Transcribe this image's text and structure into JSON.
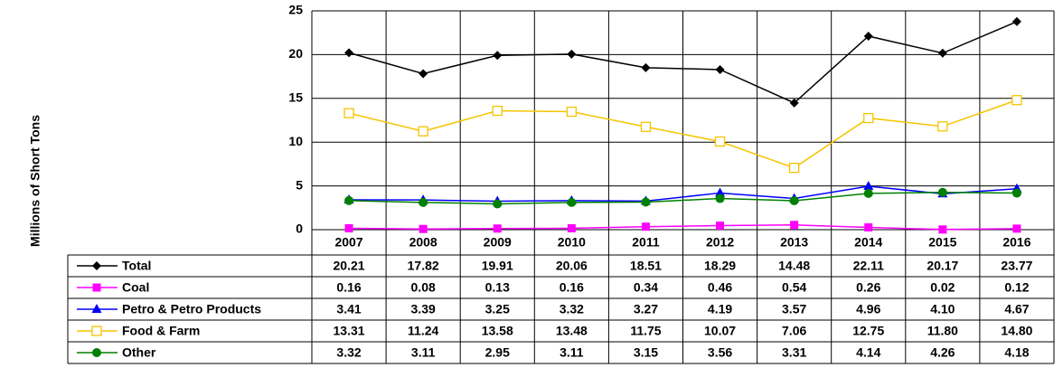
{
  "chart_data": {
    "type": "line",
    "y_label": "Millions of Short Tons",
    "categories": [
      "2007",
      "2008",
      "2009",
      "2010",
      "2011",
      "2012",
      "2013",
      "2014",
      "2015",
      "2016"
    ],
    "ylim": [
      0,
      25
    ],
    "yticks": [
      0,
      5,
      10,
      15,
      20,
      25
    ],
    "grid": true,
    "series": [
      {
        "name": "Total",
        "color": "#000000",
        "marker": "diamond",
        "values": [
          20.21,
          17.82,
          19.91,
          20.06,
          18.51,
          18.29,
          14.48,
          22.11,
          20.17,
          23.77
        ],
        "value_labels": [
          "20.21",
          "17.82",
          "19.91",
          "20.06",
          "18.51",
          "18.29",
          "14.48",
          "22.11",
          "20.17",
          "23.77"
        ]
      },
      {
        "name": "Coal",
        "color": "#ff00ff",
        "marker": "square",
        "values": [
          0.16,
          0.08,
          0.13,
          0.16,
          0.34,
          0.46,
          0.54,
          0.26,
          0.02,
          0.12
        ],
        "value_labels": [
          "0.16",
          "0.08",
          "0.13",
          "0.16",
          "0.34",
          "0.46",
          "0.54",
          "0.26",
          "0.02",
          "0.12"
        ]
      },
      {
        "name": "Petro & Petro Products",
        "color": "#0000ff",
        "marker": "triangle",
        "values": [
          3.41,
          3.39,
          3.25,
          3.32,
          3.27,
          4.19,
          3.57,
          4.96,
          4.1,
          4.67
        ],
        "value_labels": [
          "3.41",
          "3.39",
          "3.25",
          "3.32",
          "3.27",
          "4.19",
          "3.57",
          "4.96",
          "4.10",
          "4.67"
        ]
      },
      {
        "name": "Food & Farm",
        "color": "#f5c400",
        "marker": "open-square",
        "values": [
          13.31,
          11.24,
          13.58,
          13.48,
          11.75,
          10.07,
          7.06,
          12.75,
          11.8,
          14.8
        ],
        "value_labels": [
          "13.31",
          "11.24",
          "13.58",
          "13.48",
          "11.75",
          "10.07",
          "7.06",
          "12.75",
          "11.80",
          "14.80"
        ]
      },
      {
        "name": "Other",
        "color": "#008000",
        "marker": "circle",
        "values": [
          3.32,
          3.11,
          2.95,
          3.11,
          3.15,
          3.56,
          3.31,
          4.14,
          4.26,
          4.18
        ],
        "value_labels": [
          "3.32",
          "3.11",
          "2.95",
          "3.11",
          "3.15",
          "3.56",
          "3.31",
          "4.14",
          "4.26",
          "4.18"
        ]
      }
    ]
  }
}
